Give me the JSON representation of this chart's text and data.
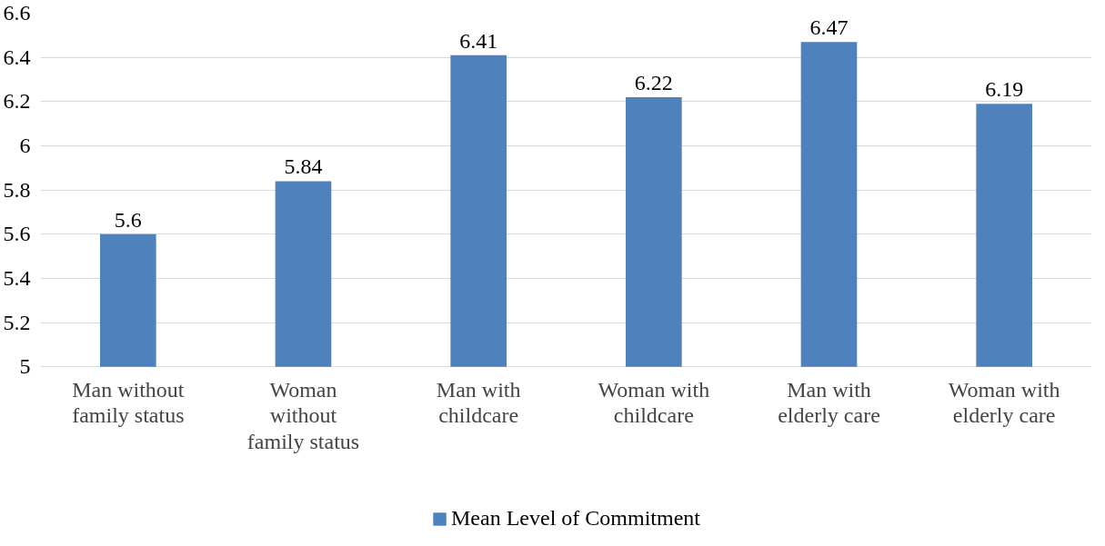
{
  "chart_data": {
    "type": "bar",
    "categories": [
      "Man without\nfamily status",
      "Woman\nwithout\nfamily status",
      "Man with\nchildcare",
      "Woman with\nchildcare",
      "Man with\nelderly care",
      "Woman with\nelderly care"
    ],
    "series": [
      {
        "name": "Mean Level of Commitment",
        "color": "#4f81bd",
        "values": [
          5.6,
          5.84,
          6.41,
          6.22,
          6.47,
          6.19
        ]
      }
    ],
    "ylim": [
      5,
      6.6
    ],
    "yticks": [
      5,
      5.2,
      5.4,
      5.6,
      5.8,
      6,
      6.2,
      6.4,
      6.6
    ],
    "grid": "y",
    "legend": "bottom",
    "data_labels": true
  }
}
